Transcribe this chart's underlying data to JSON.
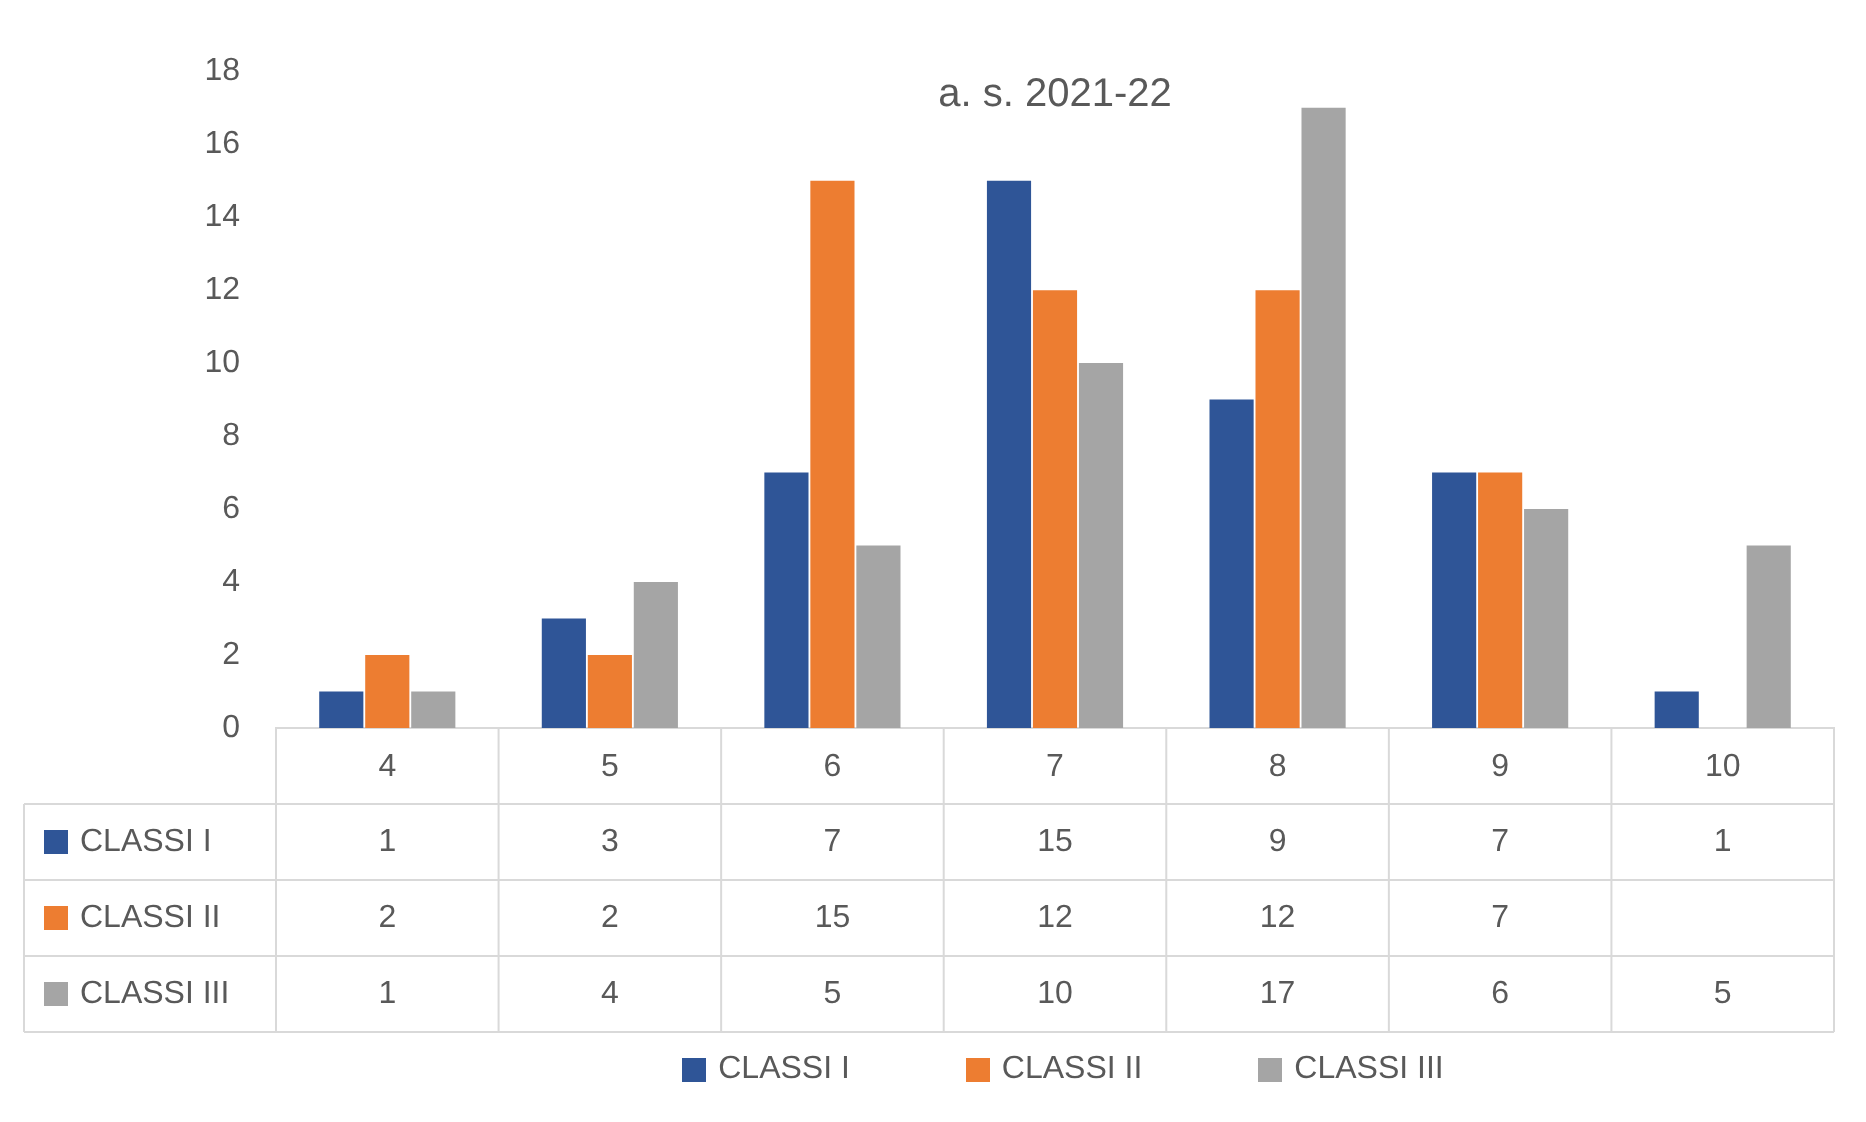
{
  "chart_data": {
    "type": "bar",
    "title": "a. s. 2021-22",
    "categories": [
      "4",
      "5",
      "6",
      "7",
      "8",
      "9",
      "10"
    ],
    "series": [
      {
        "name": "CLASSI I",
        "color": "#2f5597",
        "values": [
          1,
          3,
          7,
          15,
          9,
          7,
          1
        ]
      },
      {
        "name": "CLASSI II",
        "color": "#ed7d31",
        "values": [
          2,
          2,
          15,
          12,
          12,
          7,
          null
        ]
      },
      {
        "name": "CLASSI III",
        "color": "#a5a5a5",
        "values": [
          1,
          4,
          5,
          10,
          17,
          6,
          5
        ]
      }
    ],
    "ylim": [
      0,
      18
    ],
    "yticks": [
      0,
      2,
      4,
      6,
      8,
      10,
      12,
      14,
      16,
      18
    ],
    "grid": false,
    "legend": "bottom",
    "data_labels": true
  }
}
